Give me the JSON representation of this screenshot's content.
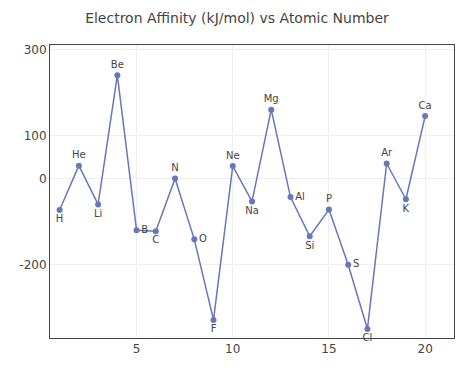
{
  "chart_data": {
    "type": "line",
    "title": "Electron Affinity (kJ/mol) vs Atomic Number",
    "x": [
      1,
      2,
      3,
      4,
      5,
      6,
      7,
      8,
      9,
      10,
      11,
      12,
      13,
      14,
      15,
      16,
      17,
      18,
      19,
      20
    ],
    "values": [
      -73,
      30,
      -60,
      240,
      -120,
      -122,
      0,
      -141,
      -328,
      29,
      -53,
      160,
      -43,
      -134,
      -72,
      -200,
      -349,
      35,
      -48,
      145
    ],
    "annotations": [
      "H",
      "He",
      "Li",
      "Be",
      "B",
      "C",
      "N",
      "O",
      "F",
      "Ne",
      "Na",
      "Mg",
      "Al",
      "Si",
      "P",
      "S",
      "Cl",
      "Ar",
      "K",
      "Ca"
    ],
    "color": "#6677bb",
    "marker": "circle",
    "xlim": [
      0.5,
      21.5
    ],
    "xticks": [
      5,
      10,
      15,
      20
    ],
    "ylim": [
      -370,
      310
    ],
    "yticks": [
      -200,
      0,
      100,
      300
    ],
    "grid": true
  }
}
